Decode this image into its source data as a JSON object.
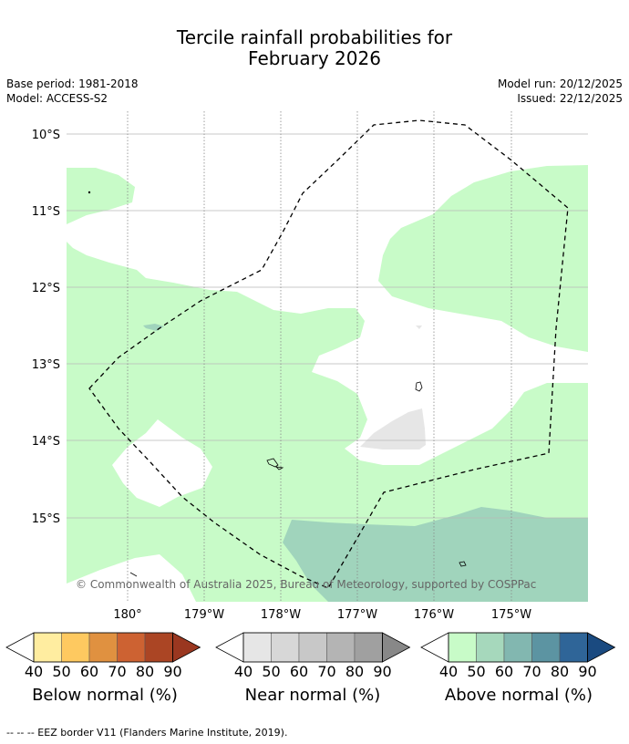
{
  "title_line1": "Tercile rainfall probabilities for",
  "title_line2": "February 2026",
  "meta": {
    "base_period": "Base period: 1981-2018",
    "model": "Model: ACCESS-S2",
    "model_run": "Model run: 20/12/2025",
    "issued": "Issued: 22/12/2025"
  },
  "map": {
    "lat_labels": [
      "10°S",
      "11°S",
      "12°S",
      "13°S",
      "14°S",
      "15°S"
    ],
    "lon_labels": [
      "180°",
      "179°W",
      "178°W",
      "177°W",
      "176°W",
      "175°W"
    ],
    "copyright": "© Commonwealth of Australia 2025, Bureau of Meteorology, supported by COSPPac"
  },
  "colorbars": [
    {
      "label": "Below normal (%)",
      "ticks": [
        "40",
        "50",
        "60",
        "70",
        "80",
        "90"
      ],
      "colors": [
        "#ffeda0",
        "#fec960",
        "#e09140",
        "#cd6232",
        "#ab4524",
        "#9a3720"
      ]
    },
    {
      "label": "Near normal (%)",
      "ticks": [
        "40",
        "50",
        "60",
        "70",
        "80",
        "90"
      ],
      "colors": [
        "#e6e6e6",
        "#d7d7d7",
        "#c8c8c8",
        "#b4b4b4",
        "#a0a0a0",
        "#888888"
      ]
    },
    {
      "label": "Above normal (%)",
      "ticks": [
        "40",
        "50",
        "60",
        "70",
        "80",
        "90"
      ],
      "colors": [
        "#c8fbc8",
        "#a6d8bc",
        "#82b7b0",
        "#5c94a2",
        "#2f6598",
        "#1a4a80"
      ]
    }
  ],
  "footer": "--  --  -- EEZ border V11 (Flanders Marine Institute, 2019)."
}
